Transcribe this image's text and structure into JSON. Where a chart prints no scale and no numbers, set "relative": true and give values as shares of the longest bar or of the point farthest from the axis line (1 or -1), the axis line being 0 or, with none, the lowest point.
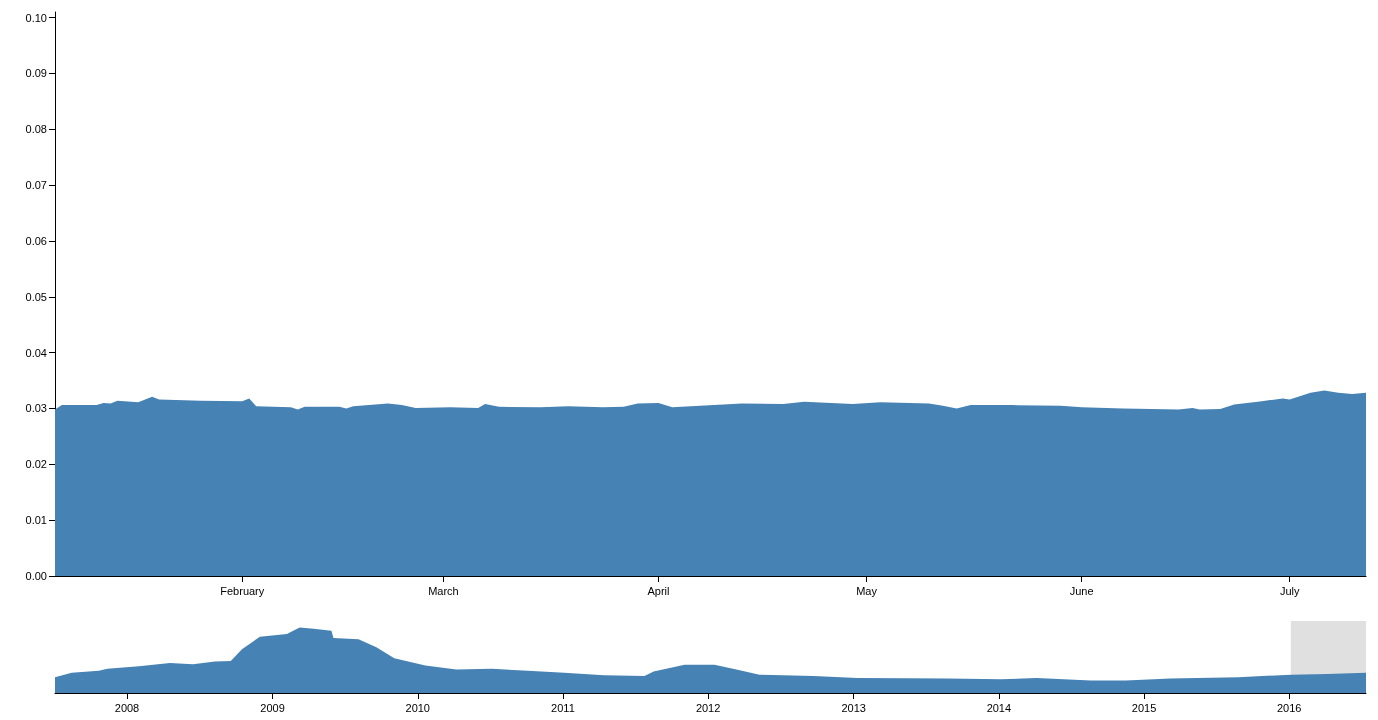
{
  "chart_data": [
    {
      "type": "area",
      "color": "#4682b4",
      "grid": false,
      "xlim": [
        "2016-01-05",
        "2016-07-12"
      ],
      "xticks": [
        {
          "value": "2016-02-01",
          "label": "February"
        },
        {
          "value": "2016-03-01",
          "label": "March"
        },
        {
          "value": "2016-04-01",
          "label": "April"
        },
        {
          "value": "2016-05-01",
          "label": "May"
        },
        {
          "value": "2016-06-01",
          "label": "June"
        },
        {
          "value": "2016-07-01",
          "label": "July"
        }
      ],
      "ylim": [
        0,
        0.101
      ],
      "yticks": [
        {
          "value": 0,
          "label": "0.00"
        },
        {
          "value": 0.01,
          "label": "0.01"
        },
        {
          "value": 0.02,
          "label": "0.02"
        },
        {
          "value": 0.03,
          "label": "0.03"
        },
        {
          "value": 0.04,
          "label": "0.04"
        },
        {
          "value": 0.05,
          "label": "0.05"
        },
        {
          "value": 0.06,
          "label": "0.06"
        },
        {
          "value": 0.07,
          "label": "0.07"
        },
        {
          "value": 0.08,
          "label": "0.08"
        },
        {
          "value": 0.09,
          "label": "0.09"
        },
        {
          "value": 0.1,
          "label": "0.10"
        }
      ],
      "x": [
        "2016-01-05",
        "2016-01-06",
        "2016-01-11",
        "2016-01-12",
        "2016-01-13",
        "2016-01-14",
        "2016-01-17",
        "2016-01-19",
        "2016-01-20",
        "2016-01-26",
        "2016-02-01",
        "2016-02-02",
        "2016-02-03",
        "2016-02-08",
        "2016-02-09",
        "2016-02-10",
        "2016-02-15",
        "2016-02-16",
        "2016-02-17",
        "2016-02-22",
        "2016-02-24",
        "2016-02-26",
        "2016-03-02",
        "2016-03-06",
        "2016-03-07",
        "2016-03-09",
        "2016-03-15",
        "2016-03-19",
        "2016-03-24",
        "2016-03-27",
        "2016-03-29",
        "2016-04-01",
        "2016-04-03",
        "2016-04-07",
        "2016-04-13",
        "2016-04-19",
        "2016-04-22",
        "2016-04-29",
        "2016-05-03",
        "2016-05-10",
        "2016-05-12",
        "2016-05-14",
        "2016-05-16",
        "2016-05-22",
        "2016-05-29",
        "2016-06-01",
        "2016-06-07",
        "2016-06-15",
        "2016-06-17",
        "2016-06-18",
        "2016-06-21",
        "2016-06-23",
        "2016-06-27",
        "2016-06-30",
        "2016-07-01",
        "2016-07-04",
        "2016-07-06",
        "2016-07-08",
        "2016-07-10",
        "2016-07-12"
      ],
      "values": [
        0.0298,
        0.0306,
        0.0306,
        0.031,
        0.0309,
        0.0314,
        0.0311,
        0.0321,
        0.0316,
        0.0314,
        0.0313,
        0.0318,
        0.0304,
        0.0302,
        0.0298,
        0.0303,
        0.0303,
        0.03,
        0.0304,
        0.0309,
        0.0306,
        0.0301,
        0.0302,
        0.0301,
        0.0308,
        0.0303,
        0.0302,
        0.0304,
        0.0302,
        0.0303,
        0.0309,
        0.031,
        0.0302,
        0.0305,
        0.0309,
        0.0308,
        0.0312,
        0.0308,
        0.0311,
        0.0309,
        0.0305,
        0.03,
        0.0306,
        0.0306,
        0.0305,
        0.0302,
        0.03,
        0.0298,
        0.0301,
        0.0298,
        0.0299,
        0.0307,
        0.0313,
        0.0318,
        0.0316,
        0.0328,
        0.0332,
        0.0328,
        0.0326,
        0.0328
      ]
    },
    {
      "type": "area",
      "color": "#4682b4",
      "relative": true,
      "grid": false,
      "tick_labels": "x",
      "xlim": [
        "2007-07-04",
        "2016-07-12"
      ],
      "xticks": [
        {
          "value": "2008-01-01",
          "label": "2008"
        },
        {
          "value": "2009-01-01",
          "label": "2009"
        },
        {
          "value": "2010-01-01",
          "label": "2010"
        },
        {
          "value": "2011-01-01",
          "label": "2011"
        },
        {
          "value": "2012-01-01",
          "label": "2012"
        },
        {
          "value": "2013-01-01",
          "label": "2013"
        },
        {
          "value": "2014-01-01",
          "label": "2014"
        },
        {
          "value": "2015-01-01",
          "label": "2015"
        },
        {
          "value": "2016-01-01",
          "label": "2016"
        }
      ],
      "bands": [
        {
          "axis": "x",
          "from": "2016-01-05",
          "to": "2016-07-12",
          "color": "#777777"
        }
      ],
      "x": [
        "2007-07-04",
        "2007-08-15",
        "2007-10-22",
        "2007-11-13",
        "2008-01-31",
        "2008-04-18",
        "2008-06-15",
        "2008-08-09",
        "2008-09-18",
        "2008-10-16",
        "2008-11-30",
        "2009-02-06",
        "2009-03-10",
        "2009-04-14",
        "2009-05-29",
        "2009-06-03",
        "2009-08-05",
        "2009-09-19",
        "2009-11-03",
        "2010-01-20",
        "2010-04-08",
        "2010-07-06",
        "2010-10-05",
        "2011-01-04",
        "2011-04-14",
        "2011-07-25",
        "2011-08-17",
        "2011-11-03",
        "2012-01-17",
        "2012-03-12",
        "2012-05-09",
        "2012-09-22",
        "2013-01-10",
        "2013-08-24",
        "2014-01-06",
        "2014-04-06",
        "2014-08-20",
        "2014-11-16",
        "2015-03-08",
        "2015-08-26",
        "2016-01-06",
        "2016-04-05",
        "2016-07-12"
      ],
      "values": [
        0.24,
        0.31,
        0.34,
        0.37,
        0.41,
        0.46,
        0.44,
        0.48,
        0.49,
        0.67,
        0.86,
        0.9,
        1,
        0.98,
        0.95,
        0.84,
        0.82,
        0.7,
        0.53,
        0.42,
        0.36,
        0.37,
        0.34,
        0.31,
        0.27,
        0.26,
        0.33,
        0.43,
        0.43,
        0.36,
        0.28,
        0.26,
        0.23,
        0.22,
        0.21,
        0.23,
        0.19,
        0.19,
        0.22,
        0.24,
        0.28,
        0.29,
        0.31
      ]
    }
  ]
}
